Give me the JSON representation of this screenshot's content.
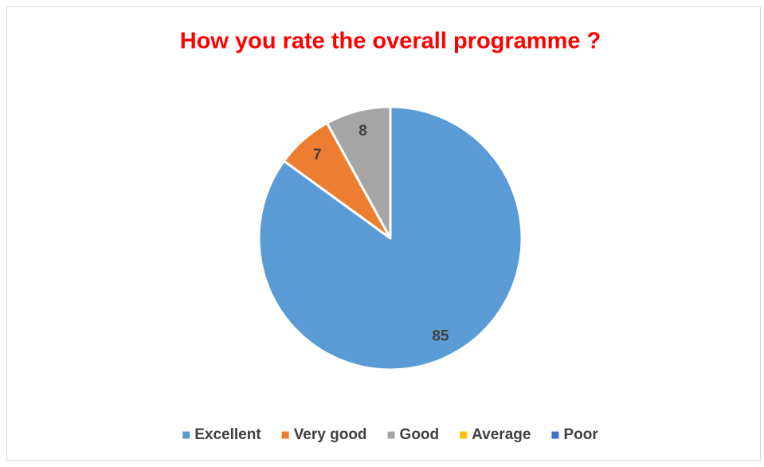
{
  "chart_data": {
    "type": "pie",
    "title": "How you rate the overall programme ?",
    "categories": [
      "Excellent",
      "Very good",
      "Good",
      "Average",
      "Poor"
    ],
    "values": [
      85,
      7,
      8,
      0,
      0
    ],
    "colors": [
      "#5b9bd5",
      "#ed7d31",
      "#a5a5a5",
      "#ffc000",
      "#4472c4"
    ],
    "legend": "bottom"
  }
}
